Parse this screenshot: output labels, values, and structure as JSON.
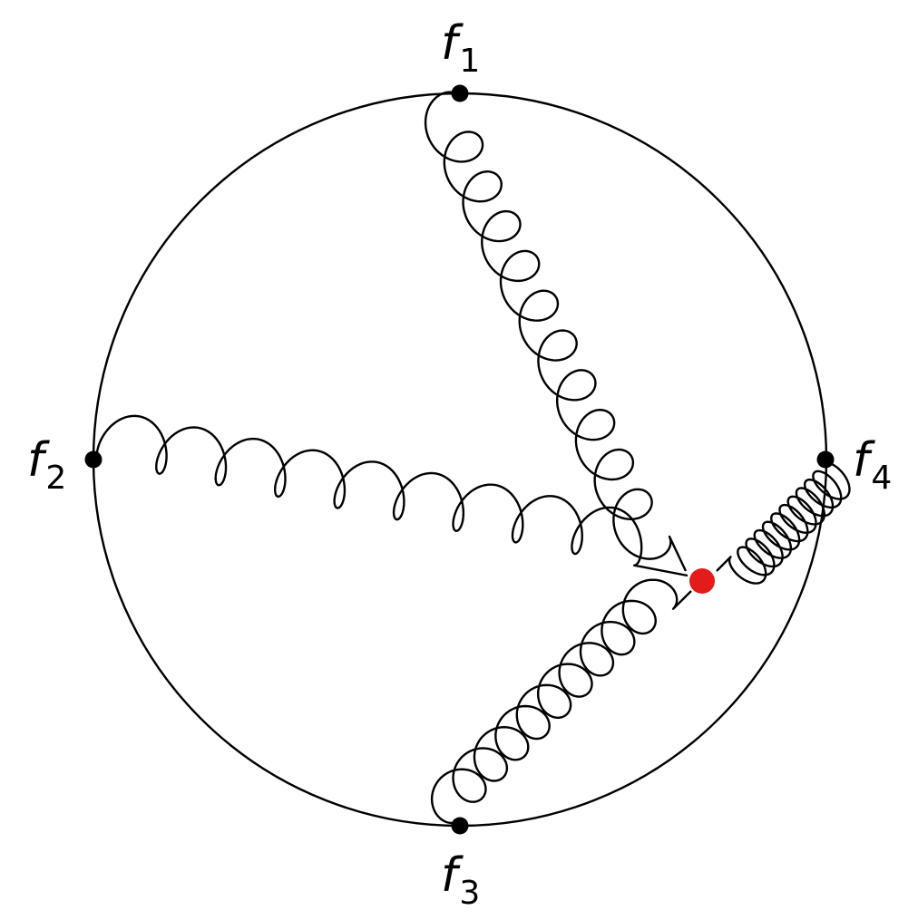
{
  "diagram": {
    "external_points": [
      {
        "id": "f1",
        "symbol": "f",
        "index": "1"
      },
      {
        "id": "f2",
        "symbol": "f",
        "index": "2"
      },
      {
        "id": "f3",
        "symbol": "f",
        "index": "3"
      },
      {
        "id": "f4",
        "symbol": "f",
        "index": "4"
      }
    ],
    "colors": {
      "stroke": "#000000",
      "vertex": "#000000",
      "interaction_vertex": "#e31b1b"
    }
  }
}
